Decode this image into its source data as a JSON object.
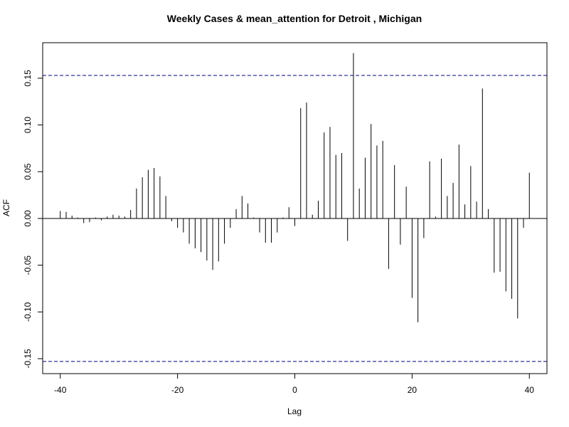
{
  "chart_data": {
    "type": "bar",
    "subtype": "acf-lollipop",
    "title": "Weekly Cases & mean_attention for Detroit , Michigan",
    "xlabel": "Lag",
    "ylabel": "ACF",
    "xlim": [
      -43,
      43
    ],
    "ylim": [
      -0.166,
      0.188
    ],
    "x_ticks": [
      -40,
      -20,
      0,
      20,
      40
    ],
    "x_tick_labels": [
      "-40",
      "-20",
      "0",
      "20",
      "40"
    ],
    "y_ticks": [
      -0.15,
      -0.1,
      -0.05,
      0.0,
      0.05,
      0.1,
      0.15
    ],
    "y_tick_labels": [
      "-0.15",
      "-0.10",
      "-0.05",
      "0.00",
      "0.05",
      "0.10",
      "0.15"
    ],
    "confidence_bound": 0.153,
    "grid": false,
    "x": [
      -40,
      -39,
      -38,
      -37,
      -36,
      -35,
      -34,
      -33,
      -32,
      -31,
      -30,
      -29,
      -28,
      -27,
      -26,
      -25,
      -24,
      -23,
      -22,
      -21,
      -20,
      -19,
      -18,
      -17,
      -16,
      -15,
      -14,
      -13,
      -12,
      -11,
      -10,
      -9,
      -8,
      -7,
      -6,
      -5,
      -4,
      -3,
      -2,
      -1,
      0,
      1,
      2,
      3,
      4,
      5,
      6,
      7,
      8,
      9,
      10,
      11,
      12,
      13,
      14,
      15,
      16,
      17,
      18,
      19,
      20,
      21,
      22,
      23,
      24,
      25,
      26,
      27,
      28,
      29,
      30,
      31,
      32,
      33,
      34,
      35,
      36,
      37,
      38,
      39,
      40
    ],
    "values": [
      0.008,
      0.007,
      0.003,
      0.001,
      -0.005,
      -0.004,
      0.001,
      -0.002,
      0.002,
      0.004,
      0.003,
      0.002,
      0.009,
      0.032,
      0.044,
      0.052,
      0.054,
      0.045,
      0.024,
      -0.003,
      -0.01,
      -0.015,
      -0.027,
      -0.032,
      -0.036,
      -0.045,
      -0.055,
      -0.046,
      -0.027,
      -0.01,
      0.01,
      0.024,
      0.016,
      0.001,
      -0.015,
      -0.026,
      -0.026,
      -0.015,
      0.001,
      0.012,
      -0.008,
      0.118,
      0.124,
      0.004,
      0.019,
      0.092,
      0.098,
      0.068,
      0.07,
      -0.024,
      0.177,
      0.032,
      0.065,
      0.101,
      0.078,
      0.083,
      -0.054,
      0.057,
      -0.028,
      0.034,
      -0.085,
      -0.111,
      -0.021,
      0.061,
      0.002,
      0.064,
      0.024,
      0.038,
      0.079,
      0.015,
      0.056,
      0.018,
      0.139,
      0.01,
      -0.058,
      -0.057,
      -0.078,
      -0.086,
      -0.107,
      -0.01,
      0.049
    ]
  }
}
